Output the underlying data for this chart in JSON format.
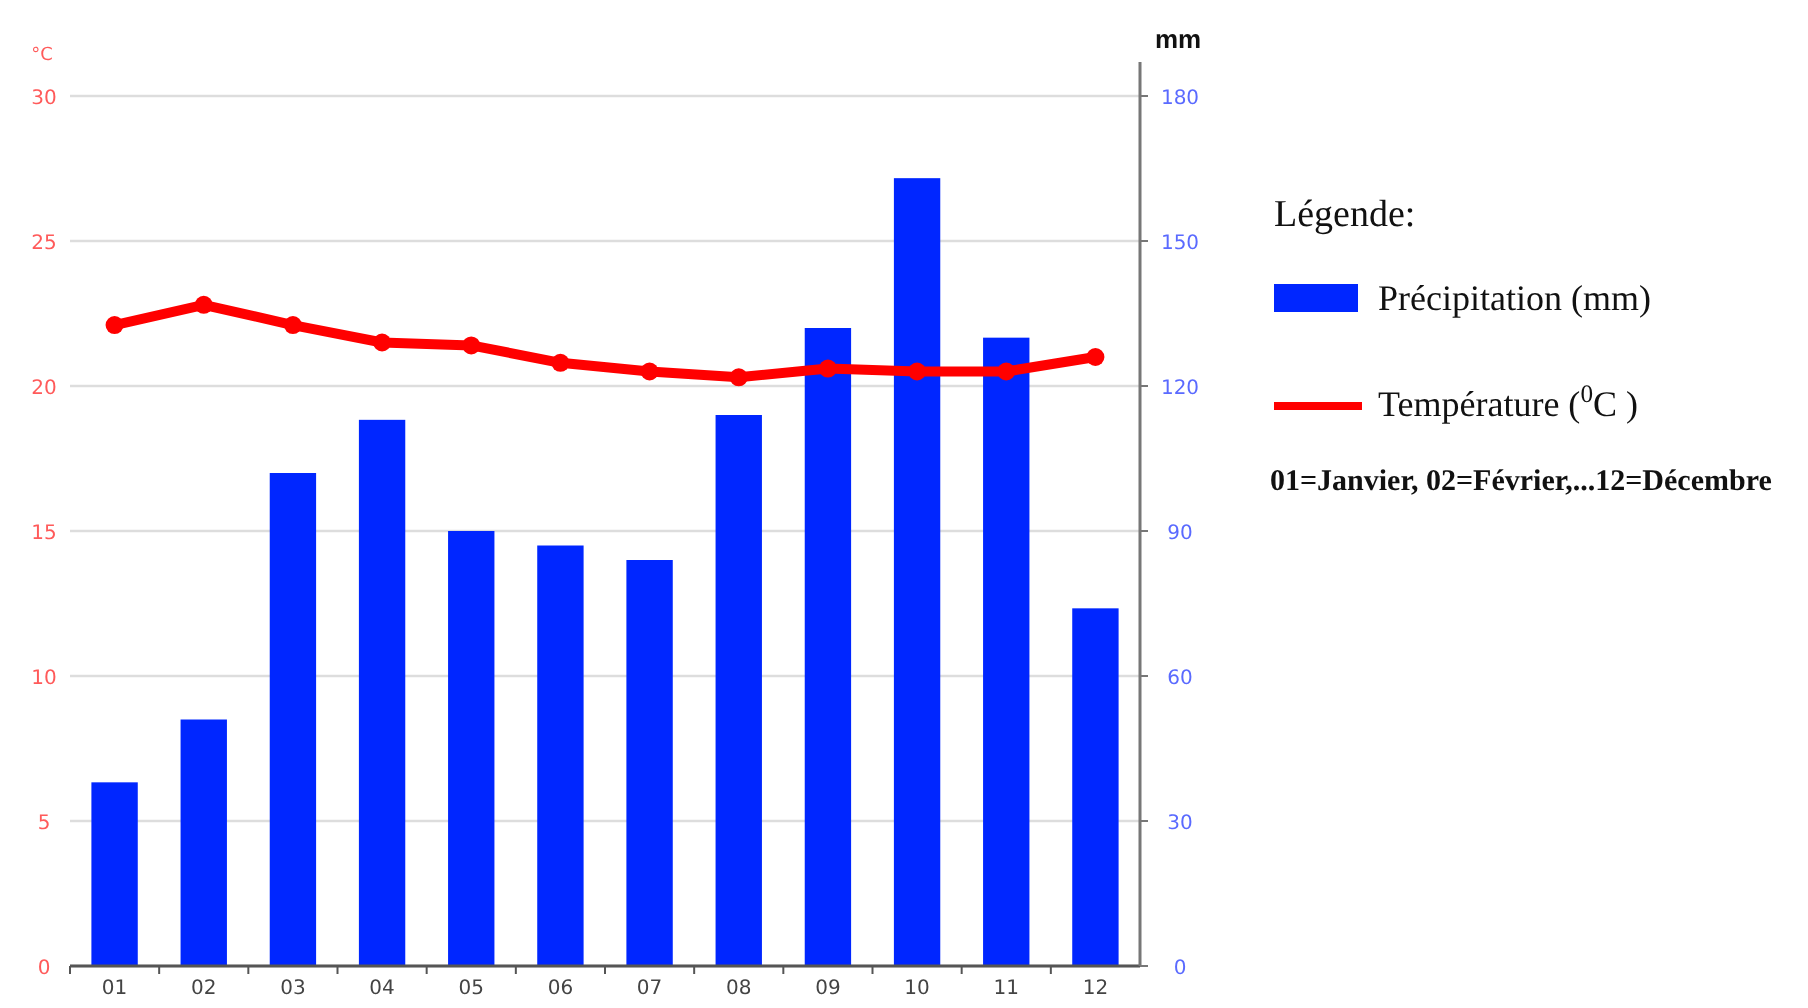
{
  "chart_data": {
    "type": "bar",
    "ylabel": "°C",
    "y2label": "mm",
    "legend_title": "Légende:",
    "categories": [
      "01",
      "02",
      "03",
      "04",
      "05",
      "06",
      "07",
      "08",
      "09",
      "10",
      "11",
      "12"
    ],
    "series": [
      {
        "name": "Précipitation (mm)",
        "axis": "y2",
        "color": "#0026ff",
        "values": [
          38,
          51,
          102,
          113,
          90,
          87,
          84,
          114,
          132,
          163,
          130,
          74
        ]
      },
      {
        "name": "Température ($^{0}$C )",
        "type": "line",
        "axis": "y",
        "color": "#ff0000",
        "marker": "circle",
        "values": [
          22.1,
          22.8,
          22.1,
          21.5,
          21.4,
          20.8,
          20.5,
          20.3,
          20.6,
          20.5,
          20.5,
          21.0
        ]
      }
    ],
    "ylim": [
      0,
      30
    ],
    "yticks": [
      0,
      5,
      10,
      15,
      20,
      25,
      30
    ],
    "y2lim": [
      0,
      180
    ],
    "y2ticks": [
      0,
      30,
      60,
      90,
      120,
      150,
      180
    ],
    "grid": "y",
    "legend": "right",
    "annotations": [
      "01=Janvier, 02=Février,...12=Décembre"
    ]
  }
}
